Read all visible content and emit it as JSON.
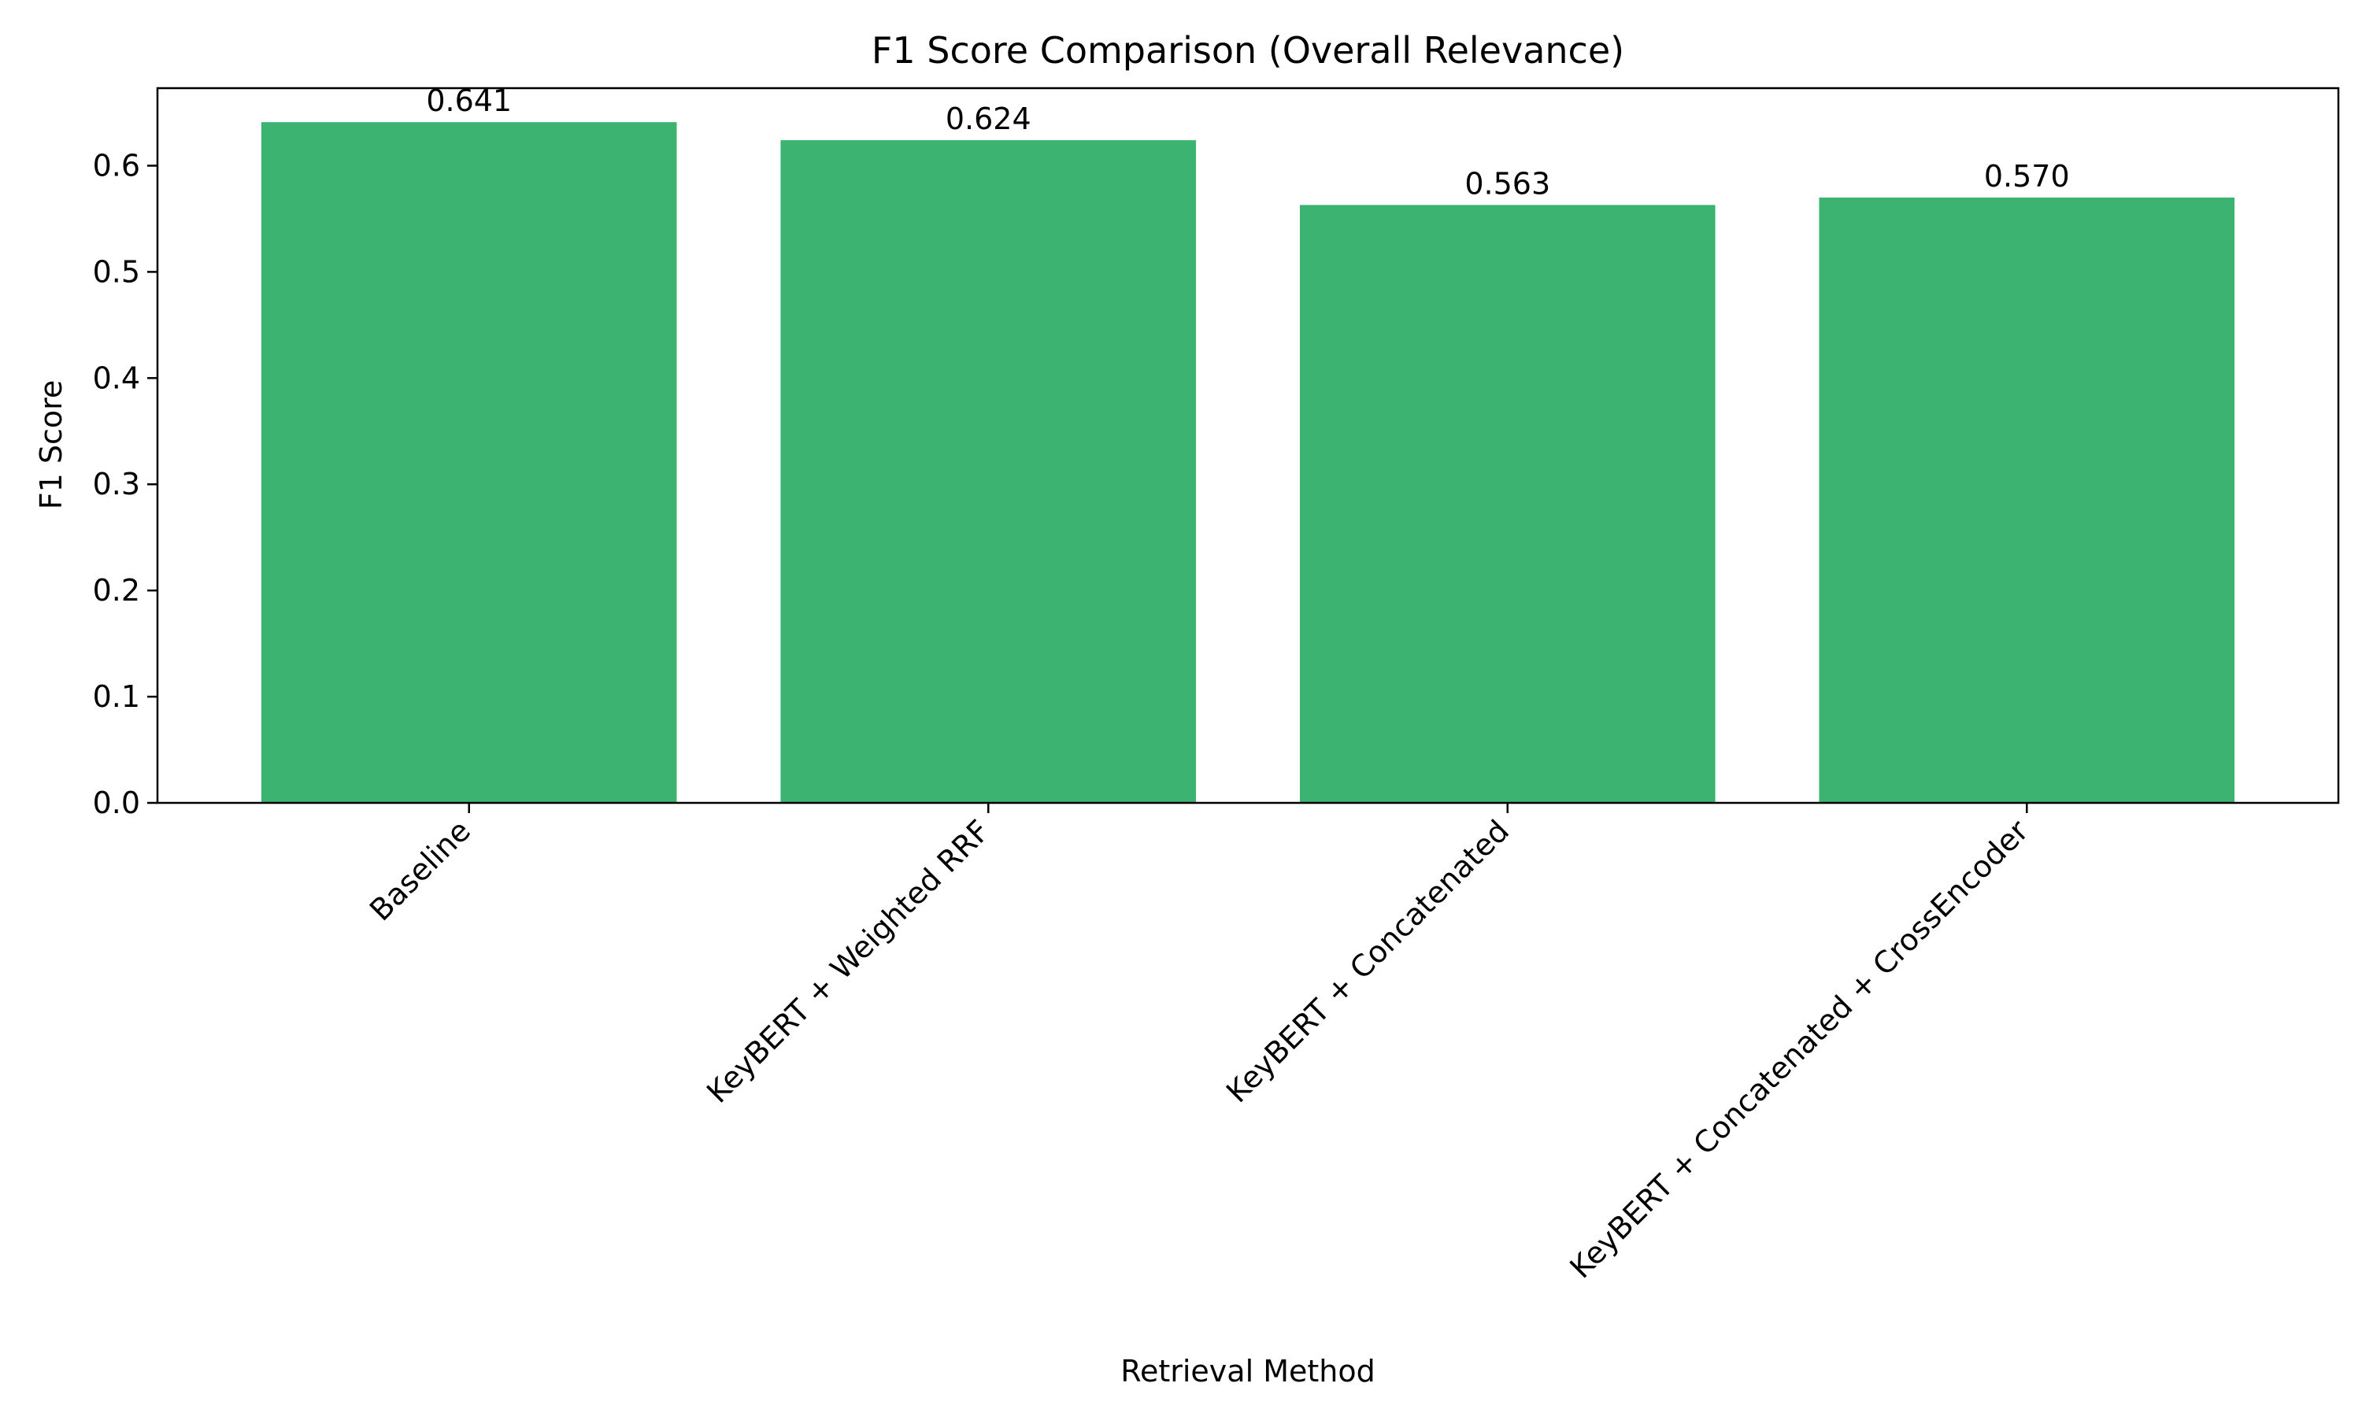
{
  "chart_data": {
    "type": "bar",
    "title": "F1 Score Comparison (Overall Relevance)",
    "xlabel": "Retrieval Method",
    "ylabel": "F1 Score",
    "categories": [
      "Baseline",
      "KeyBERT + Weighted RRF",
      "KeyBERT + Concatenated",
      "KeyBERT + Concatenated + CrossEncoder"
    ],
    "values": [
      0.641,
      0.624,
      0.563,
      0.57
    ],
    "value_labels": [
      "0.641",
      "0.624",
      "0.563",
      "0.570"
    ],
    "ylim": [
      0,
      0.673
    ],
    "yticks": [
      0.0,
      0.1,
      0.2,
      0.3,
      0.4,
      0.5,
      0.6
    ],
    "ytick_labels": [
      "0.0",
      "0.1",
      "0.2",
      "0.3",
      "0.4",
      "0.5",
      "0.6"
    ],
    "grid": false,
    "legend": false,
    "bar_color": "#3cb371"
  }
}
